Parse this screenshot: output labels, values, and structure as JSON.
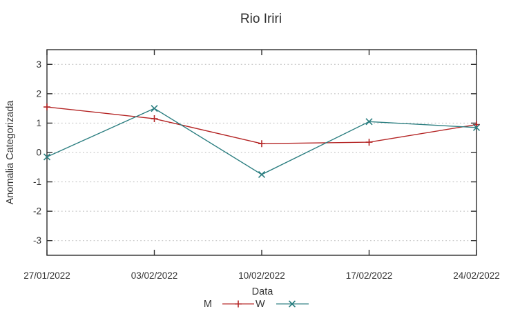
{
  "window": {
    "title": "Rio Iriri"
  },
  "chart_data": {
    "type": "line",
    "title": "Rio Iriri",
    "xlabel": "Data",
    "ylabel": "Anomalia Categorizada",
    "categories": [
      "27/01/2022",
      "03/02/2022",
      "10/02/2022",
      "17/02/2022",
      "24/02/2022"
    ],
    "series": [
      {
        "name": "M",
        "marker": "plus",
        "color": "#b42424",
        "values": [
          1.55,
          1.15,
          0.3,
          0.35,
          0.95
        ]
      },
      {
        "name": "W",
        "marker": "cross",
        "color": "#2b7e80",
        "values": [
          -0.15,
          1.5,
          -0.75,
          1.05,
          0.85
        ]
      }
    ],
    "ylim": [
      -3.5,
      3.5
    ],
    "yticks": [
      -3,
      -2,
      -1,
      0,
      1,
      2,
      3
    ],
    "grid": true,
    "grid_style": "dotted",
    "legend_position": "bottom-center",
    "colors": {
      "background": "#ffffff",
      "border": "#2e2e2e",
      "grid": "#b9b9b9",
      "tick_text": "#383838"
    }
  }
}
